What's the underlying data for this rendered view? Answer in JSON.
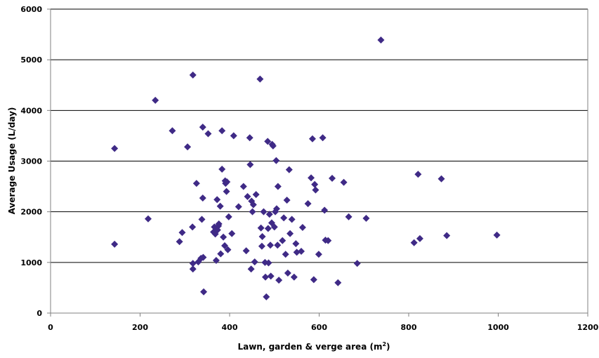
{
  "chart_data": {
    "type": "scatter",
    "title": "",
    "xlabel": "Lawn, garden & verge area (m",
    "xlabel_sup": "2",
    "xlabel_close": ")",
    "ylabel": "Average Usage (L/day)",
    "xlim": [
      0,
      1200
    ],
    "ylim": [
      0,
      6000
    ],
    "x_ticks": [
      0,
      200,
      400,
      600,
      800,
      1000,
      1200
    ],
    "y_ticks": [
      0,
      1000,
      2000,
      3000,
      4000,
      5000,
      6000
    ],
    "grid": "horizontal",
    "legend": "none",
    "marker": "diamond",
    "marker_color": "#3f2a86",
    "points": [
      [
        143,
        3250
      ],
      [
        143,
        1360
      ],
      [
        218,
        1860
      ],
      [
        234,
        4200
      ],
      [
        272,
        3600
      ],
      [
        288,
        1410
      ],
      [
        294,
        1590
      ],
      [
        306,
        3280
      ],
      [
        317,
        1700
      ],
      [
        318,
        4700
      ],
      [
        318,
        870
      ],
      [
        318,
        980
      ],
      [
        326,
        2560
      ],
      [
        330,
        1010
      ],
      [
        336,
        1080
      ],
      [
        338,
        1850
      ],
      [
        340,
        3670
      ],
      [
        340,
        2270
      ],
      [
        341,
        1100
      ],
      [
        342,
        420
      ],
      [
        352,
        3540
      ],
      [
        364,
        1600
      ],
      [
        366,
        1700
      ],
      [
        368,
        1560
      ],
      [
        370,
        1040
      ],
      [
        372,
        2240
      ],
      [
        373,
        1640
      ],
      [
        375,
        1720
      ],
      [
        376,
        1760
      ],
      [
        379,
        2110
      ],
      [
        380,
        1170
      ],
      [
        383,
        3600
      ],
      [
        383,
        2840
      ],
      [
        386,
        1500
      ],
      [
        389,
        1330
      ],
      [
        390,
        2610
      ],
      [
        391,
        2560
      ],
      [
        393,
        2400
      ],
      [
        394,
        2590
      ],
      [
        396,
        1250
      ],
      [
        398,
        1900
      ],
      [
        405,
        1570
      ],
      [
        409,
        3500
      ],
      [
        420,
        2100
      ],
      [
        431,
        2500
      ],
      [
        437,
        1230
      ],
      [
        440,
        2300
      ],
      [
        445,
        3460
      ],
      [
        446,
        2930
      ],
      [
        448,
        870
      ],
      [
        449,
        2210
      ],
      [
        451,
        2000
      ],
      [
        453,
        2140
      ],
      [
        456,
        1010
      ],
      [
        459,
        2340
      ],
      [
        468,
        4620
      ],
      [
        470,
        1680
      ],
      [
        472,
        1320
      ],
      [
        473,
        1510
      ],
      [
        476,
        2000
      ],
      [
        479,
        1000
      ],
      [
        480,
        710
      ],
      [
        482,
        320
      ],
      [
        485,
        3390
      ],
      [
        486,
        1670
      ],
      [
        487,
        990
      ],
      [
        489,
        1950
      ],
      [
        491,
        1340
      ],
      [
        492,
        730
      ],
      [
        494,
        1780
      ],
      [
        495,
        3330
      ],
      [
        497,
        3300
      ],
      [
        500,
        1700
      ],
      [
        502,
        2000
      ],
      [
        504,
        3010
      ],
      [
        505,
        2060
      ],
      [
        507,
        1340
      ],
      [
        508,
        2500
      ],
      [
        510,
        650
      ],
      [
        518,
        1430
      ],
      [
        521,
        1880
      ],
      [
        525,
        1160
      ],
      [
        528,
        2230
      ],
      [
        530,
        790
      ],
      [
        533,
        2830
      ],
      [
        535,
        1570
      ],
      [
        539,
        1850
      ],
      [
        544,
        710
      ],
      [
        548,
        1370
      ],
      [
        550,
        1200
      ],
      [
        560,
        1220
      ],
      [
        563,
        1690
      ],
      [
        575,
        2160
      ],
      [
        582,
        2670
      ],
      [
        585,
        3440
      ],
      [
        588,
        660
      ],
      [
        590,
        2540
      ],
      [
        592,
        2430
      ],
      [
        599,
        1160
      ],
      [
        608,
        3460
      ],
      [
        612,
        2030
      ],
      [
        614,
        1440
      ],
      [
        620,
        1430
      ],
      [
        629,
        2660
      ],
      [
        642,
        600
      ],
      [
        655,
        2580
      ],
      [
        666,
        1900
      ],
      [
        685,
        980
      ],
      [
        705,
        1870
      ],
      [
        738,
        5390
      ],
      [
        812,
        1390
      ],
      [
        821,
        2740
      ],
      [
        825,
        1470
      ],
      [
        873,
        2650
      ],
      [
        885,
        1530
      ],
      [
        997,
        1540
      ]
    ]
  },
  "colors": {
    "marker": "#3f2a86",
    "gridline": "#000000",
    "axis": "#808080"
  }
}
